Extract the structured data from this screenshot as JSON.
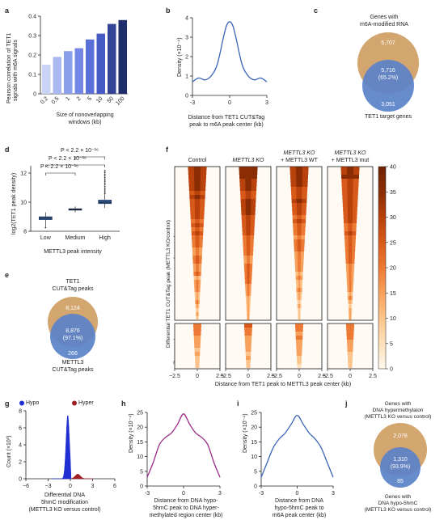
{
  "panels": {
    "a": {
      "letter": "a",
      "ylabel_line1": "Pearson correlation of TET1",
      "ylabel_line2": "signals with m6A signals",
      "xlabel_line1": "Size of nonoverlapping",
      "xlabel_line2": "windows (kb)",
      "chart_data": {
        "type": "bar",
        "categories": [
          "0.2",
          "0.5",
          "1",
          "2",
          "5",
          "10",
          "50",
          "100"
        ],
        "values": [
          0.15,
          0.19,
          0.22,
          0.235,
          0.28,
          0.31,
          0.36,
          0.38
        ],
        "ylim": [
          0,
          0.4
        ],
        "yticks": [
          "0",
          "0.1",
          "0.2",
          "0.3",
          "0.4"
        ],
        "colors": [
          "#c9d3f5",
          "#a9b8f0",
          "#8c9fec",
          "#7487e6",
          "#5b6fd9",
          "#4759c3",
          "#334495",
          "#1d2e6b"
        ]
      }
    },
    "b": {
      "letter": "b",
      "ylabel": "Density (×10⁻⁴)",
      "xlabel_line1": "Distance from TET1 CUT&Tag",
      "xlabel_line2": "peak to m6A peak center (kb)",
      "chart_data": {
        "type": "line",
        "x": [
          -3,
          -2.5,
          -2,
          -1.5,
          -1,
          -0.5,
          -0.25,
          0,
          0.25,
          0.5,
          1,
          1.5,
          2,
          2.5,
          3
        ],
        "y": [
          0.7,
          0.9,
          0.8,
          1.0,
          1.6,
          3.0,
          3.6,
          3.8,
          3.6,
          3.0,
          1.6,
          1.0,
          0.8,
          0.9,
          0.7
        ],
        "xticks": [
          "-3",
          "0",
          "3"
        ],
        "yticks": [
          "0",
          "1",
          "2",
          "3",
          "4"
        ],
        "xlim": [
          -3,
          3
        ],
        "ylim": [
          0,
          4
        ],
        "color": "#3a63b8"
      }
    },
    "c": {
      "letter": "c",
      "title_line1": "Genes with",
      "title_line2": "m6A-modified RNA",
      "top_count": "5,707",
      "overlap_count": "5,716",
      "overlap_pct": "(65.2%)",
      "bottom_count": "3,051",
      "bottom_label": "TET1 target genes",
      "top_color": "#d2a66e",
      "bottom_color": "#5a82c8"
    },
    "d": {
      "letter": "d",
      "ylabel": "log2(TET1 peak density)",
      "xlabel": "METTL3 peak intensity",
      "pvals": [
        "P < 2.2 × 10⁻¹⁶",
        "P < 2.2 × 10⁻¹⁶",
        "P < 2.2 × 10⁻¹⁶"
      ],
      "chart_data": {
        "type": "box",
        "categories": [
          "Low",
          "Medium",
          "High"
        ],
        "medians": [
          8.9,
          9.5,
          10.0
        ],
        "q1": [
          8.8,
          9.45,
          9.9
        ],
        "q3": [
          9.0,
          9.55,
          10.15
        ],
        "whisker_low": [
          8.3,
          9.3,
          9.6
        ],
        "whisker_high": [
          9.3,
          9.7,
          10.6
        ],
        "ylim": [
          8,
          12.5
        ],
        "yticks": [
          "8",
          "10",
          "12"
        ],
        "color": "#3c6aa8"
      }
    },
    "e": {
      "letter": "e",
      "title_line1": "TET1",
      "title_line2": "CUT&Tag peaks",
      "top_count": "8,124",
      "overlap_count": "8,876",
      "overlap_pct": "(97.1%)",
      "bottom_count": "266",
      "bottom_line1": "METTL3",
      "bottom_line2": "CUT&Tag peaks"
    },
    "f": {
      "letter": "f",
      "columns": [
        {
          "line1": "Control",
          "line2": ""
        },
        {
          "line1": "METTL3 KO",
          "line2": ""
        },
        {
          "line1": "METTL3 KO",
          "line2": "+ METTL3 WT"
        },
        {
          "line1": "METTL3 KO",
          "line2": "+ METTL3 mut"
        }
      ],
      "side_label": "Differential TET1 CUT&Tag peak (METTL3 KO/control)",
      "increased": "Increased",
      "decreased": "Decreased",
      "xticks": [
        "−2.5",
        "0",
        "2.5"
      ],
      "xlabel": "Distance from TET1 peak to METTL3 peak center (kb)",
      "colorbar_ticks": [
        "40",
        "35",
        "30",
        "25",
        "20",
        "15",
        "10",
        "5",
        "0"
      ]
    },
    "g": {
      "letter": "g",
      "legend_hypo": "Hypo",
      "legend_hyper": "Hyper",
      "ylabel": "Count (×10³)",
      "xlabel_line1": "Differential DNA",
      "xlabel_line2": "5hmC modification",
      "xlabel_line3": "(METTL3 KO versus control)",
      "chart_data": {
        "type": "histogram",
        "xticks": [
          "−6",
          "−3",
          "0",
          "3",
          "6"
        ],
        "yticks": [
          "0",
          "2",
          "4",
          "6",
          "8"
        ],
        "xlim": [
          -6,
          6
        ],
        "ylim": [
          0,
          8
        ],
        "hypo_color": "#1f2fd1",
        "hyper_color": "#a01f24"
      }
    },
    "h": {
      "letter": "h",
      "ylabel": "Density (×10⁻⁴)",
      "xlabel_line1": "Distance from DNA hypo-",
      "xlabel_line2": "5hmC peak to DNA hyper-",
      "xlabel_line3": "methylated region center (kb)",
      "chart_data": {
        "type": "line",
        "x": [
          -3,
          -2.5,
          -2,
          -1.5,
          -1,
          -0.5,
          0,
          0.5,
          1,
          1.5,
          2,
          2.5,
          3
        ],
        "y": [
          3,
          8,
          14,
          16.5,
          18,
          21,
          24.5,
          21,
          18,
          16.5,
          14,
          8,
          3
        ],
        "xticks": [
          "-3",
          "0",
          "3"
        ],
        "yticks": [
          "0",
          "5",
          "10",
          "15",
          "20",
          "25"
        ],
        "xlim": [
          -3,
          3
        ],
        "ylim": [
          0,
          25
        ],
        "color": "#9a2b86"
      }
    },
    "i": {
      "letter": "i",
      "ylabel": "Density (×10⁻⁴)",
      "xlabel_line1": "Distance from DNA",
      "xlabel_line2": "hypo-5hmC peak to",
      "xlabel_line3": "m6A peak center (kb)",
      "chart_data": {
        "type": "line",
        "x": [
          -3,
          -2.5,
          -2,
          -1.5,
          -1,
          -0.5,
          0,
          0.5,
          1,
          1.5,
          2,
          2.5,
          3
        ],
        "y": [
          3,
          8,
          13,
          16,
          18,
          21,
          24,
          21,
          18,
          16,
          13,
          8,
          3
        ],
        "xticks": [
          "-3",
          "0",
          "3"
        ],
        "yticks": [
          "0",
          "5",
          "10",
          "15",
          "20",
          "25"
        ],
        "xlim": [
          -3,
          3
        ],
        "ylim": [
          0,
          25
        ],
        "color": "#3a63b8"
      }
    },
    "j": {
      "letter": "j",
      "title_line1": "Genes with",
      "title_line2": "DNA hypermethylaion",
      "title_line3": "(METTL3 KO versus control)",
      "top_count": "2,078",
      "overlap_count": "1,310",
      "overlap_pct": "(93.9%)",
      "bottom_count": "85",
      "bottom_line1": "Genes with",
      "bottom_line2": "DNA hypo-5hmC",
      "bottom_line3": "(METTL3 KO versus control)"
    }
  }
}
